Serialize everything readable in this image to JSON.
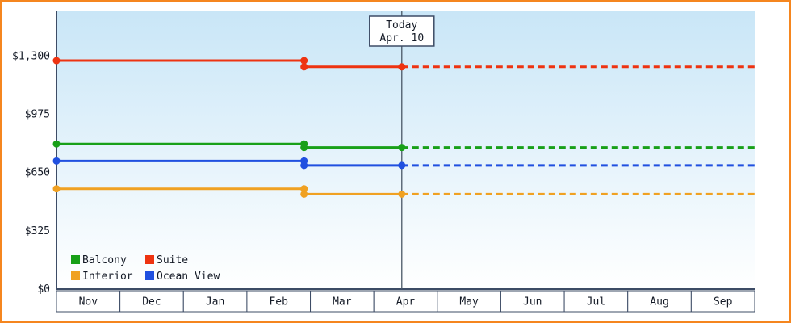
{
  "panel": {
    "border_color": "#f5861f",
    "background_color": "#ffffff"
  },
  "colors": {
    "axis": "#3d4c66",
    "month_cell_border": "#3d4c66",
    "month_cell_fill": "#ffffff",
    "text": "#141a26",
    "today_line": "#4a5866",
    "today_box_border": "#3d4c66",
    "today_box_fill": "#ffffff",
    "plot_gradient_top": "#c9e6f7",
    "plot_gradient_bottom": "#ffffff"
  },
  "chart_data": {
    "type": "line",
    "title": "",
    "x_axis": {
      "categories": [
        "Nov",
        "Dec",
        "Jan",
        "Feb",
        "Mar",
        "Apr",
        "May",
        "Jun",
        "Jul",
        "Aug",
        "Sep"
      ]
    },
    "y_axis": {
      "tick_values": [
        0,
        325,
        650,
        975,
        1300
      ],
      "tick_labels": [
        "$0",
        "$325",
        "$650",
        "$975",
        "$1,300"
      ],
      "range": [
        0,
        1550
      ],
      "grid": false
    },
    "today": {
      "label_line1": "Today",
      "label_line2": "Apr. 10",
      "x_months": 5.44
    },
    "series": [
      {
        "name": "Balcony",
        "color": "#18a018",
        "points": [
          [
            0,
            810
          ],
          [
            3.9,
            810
          ],
          [
            3.9,
            790
          ],
          [
            5.44,
            790
          ]
        ],
        "forecast_value": 790
      },
      {
        "name": "Suite",
        "color": "#ee3311",
        "points": [
          [
            0,
            1275
          ],
          [
            3.9,
            1275
          ],
          [
            3.9,
            1240
          ],
          [
            5.44,
            1240
          ]
        ],
        "forecast_value": 1240
      },
      {
        "name": "Interior",
        "color": "#f0a122",
        "points": [
          [
            0,
            560
          ],
          [
            3.9,
            560
          ],
          [
            3.9,
            530
          ],
          [
            5.44,
            530
          ]
        ],
        "forecast_value": 530
      },
      {
        "name": "Ocean View",
        "color": "#2050e0",
        "points": [
          [
            0,
            715
          ],
          [
            3.9,
            715
          ],
          [
            3.9,
            690
          ],
          [
            5.44,
            690
          ]
        ],
        "forecast_value": 690
      }
    ],
    "legend": {
      "position": "bottom-left",
      "rows": [
        [
          "Balcony",
          "Suite"
        ],
        [
          "Interior",
          "Ocean View"
        ]
      ]
    }
  }
}
